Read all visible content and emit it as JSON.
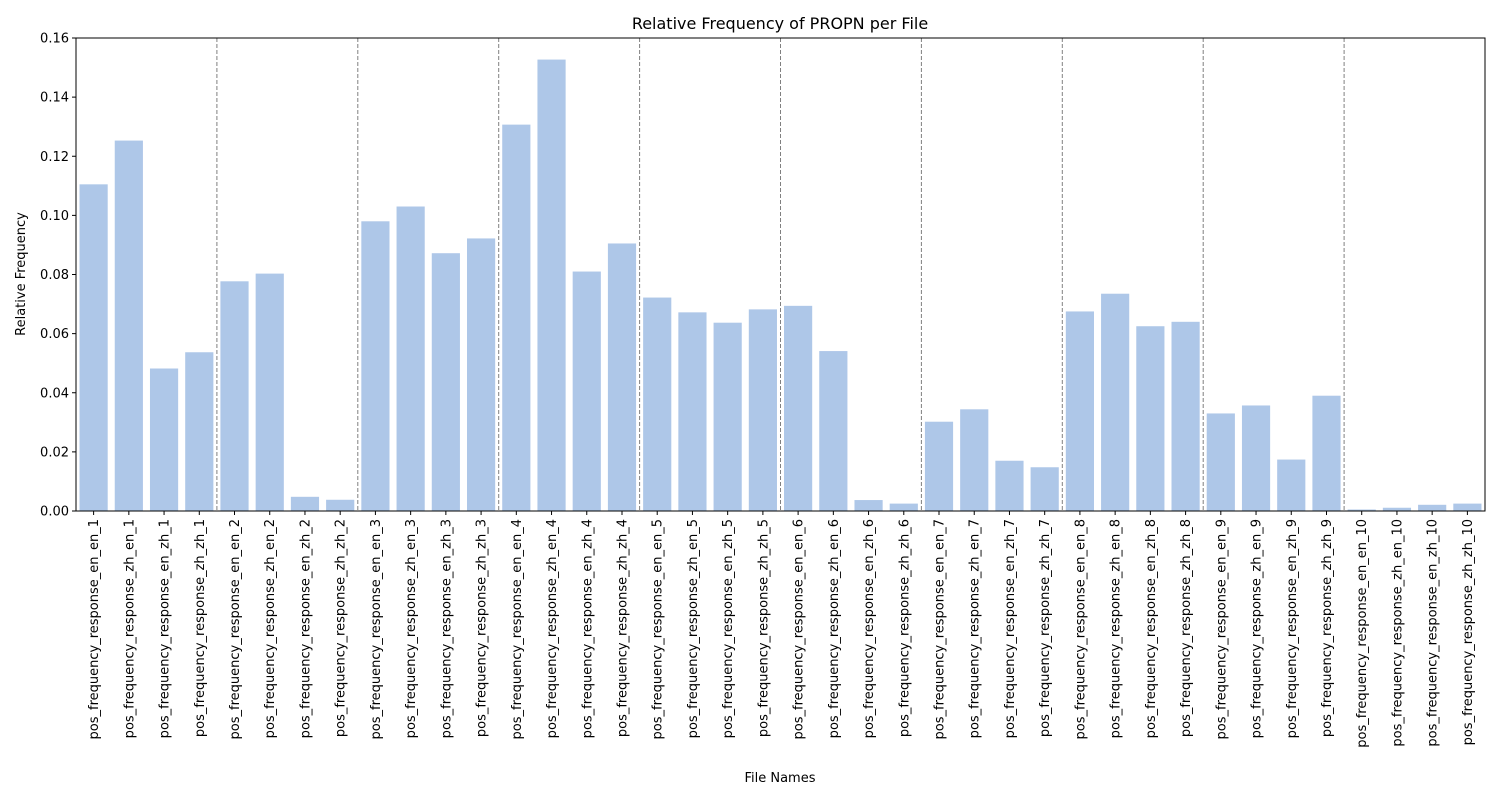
{
  "chart_data": {
    "type": "bar",
    "title": "Relative Frequency of PROPN per File",
    "xlabel": "File Names",
    "ylabel": "Relative Frequency",
    "ylim": [
      0,
      0.16
    ],
    "yticks": [
      "0.00",
      "0.02",
      "0.04",
      "0.06",
      "0.08",
      "0.10",
      "0.12",
      "0.14",
      "0.16"
    ],
    "bar_color": "#aec7e8",
    "separator_color": "#808080",
    "grid": false,
    "group_size": 4,
    "categories": [
      "pos_frequency_response_en_en_1",
      "pos_frequency_response_zh_en_1",
      "pos_frequency_response_en_zh_1",
      "pos_frequency_response_zh_zh_1",
      "pos_frequency_response_en_en_2",
      "pos_frequency_response_zh_en_2",
      "pos_frequency_response_en_zh_2",
      "pos_frequency_response_zh_zh_2",
      "pos_frequency_response_en_en_3",
      "pos_frequency_response_zh_en_3",
      "pos_frequency_response_en_zh_3",
      "pos_frequency_response_zh_zh_3",
      "pos_frequency_response_en_en_4",
      "pos_frequency_response_zh_en_4",
      "pos_frequency_response_en_zh_4",
      "pos_frequency_response_zh_zh_4",
      "pos_frequency_response_en_en_5",
      "pos_frequency_response_zh_en_5",
      "pos_frequency_response_en_zh_5",
      "pos_frequency_response_zh_zh_5",
      "pos_frequency_response_en_en_6",
      "pos_frequency_response_zh_en_6",
      "pos_frequency_response_en_zh_6",
      "pos_frequency_response_zh_zh_6",
      "pos_frequency_response_en_en_7",
      "pos_frequency_response_zh_en_7",
      "pos_frequency_response_en_zh_7",
      "pos_frequency_response_zh_zh_7",
      "pos_frequency_response_en_en_8",
      "pos_frequency_response_zh_en_8",
      "pos_frequency_response_en_zh_8",
      "pos_frequency_response_zh_zh_8",
      "pos_frequency_response_en_en_9",
      "pos_frequency_response_zh_en_9",
      "pos_frequency_response_en_zh_9",
      "pos_frequency_response_zh_zh_9",
      "pos_frequency_response_en_en_10",
      "pos_frequency_response_zh_en_10",
      "pos_frequency_response_en_zh_10",
      "pos_frequency_response_zh_zh_10"
    ],
    "values": [
      0.1105,
      0.1253,
      0.0482,
      0.0537,
      0.0777,
      0.0803,
      0.0048,
      0.0038,
      0.098,
      0.103,
      0.0872,
      0.0922,
      0.1307,
      0.1527,
      0.081,
      0.0905,
      0.0722,
      0.0672,
      0.0637,
      0.0682,
      0.0694,
      0.0541,
      0.0037,
      0.0025,
      0.0302,
      0.0344,
      0.017,
      0.0148,
      0.0675,
      0.0735,
      0.0625,
      0.064,
      0.033,
      0.0357,
      0.0174,
      0.039,
      0.0005,
      0.0011,
      0.0021,
      0.0025
    ]
  }
}
